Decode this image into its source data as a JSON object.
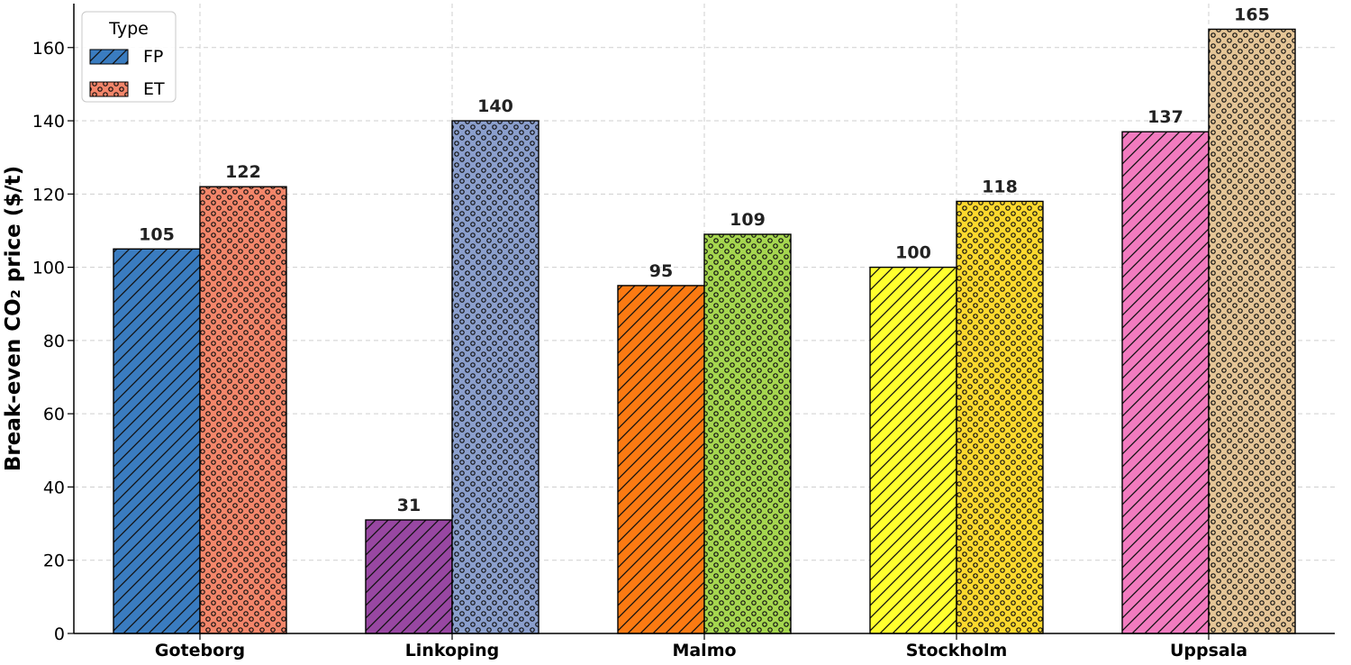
{
  "chart_data": {
    "type": "bar",
    "title": "",
    "xlabel": "",
    "ylabel": "Break-even CO₂ price ($/t)",
    "ylim": [
      0,
      172
    ],
    "yticks": [
      0,
      20,
      40,
      60,
      80,
      100,
      120,
      140,
      160
    ],
    "grid": true,
    "legend": {
      "title": "Type",
      "location": "top-left",
      "entries": [
        {
          "label": "FP",
          "color": "#3a7cc0",
          "pattern": "hatch"
        },
        {
          "label": "ET",
          "color": "#f4866a",
          "pattern": "dots"
        }
      ]
    },
    "categories": [
      "Goteborg",
      "Linkoping",
      "Malmo",
      "Stockholm",
      "Uppsala"
    ],
    "series": [
      {
        "name": "FP",
        "pattern": "hatch",
        "values": [
          105,
          31,
          95,
          100,
          137
        ],
        "colors": [
          "#3a7cc0",
          "#9847a2",
          "#fb7a12",
          "#ffff2e",
          "#f27bbf"
        ]
      },
      {
        "name": "ET",
        "pattern": "dots",
        "values": [
          122,
          140,
          109,
          118,
          165
        ],
        "colors": [
          "#f4866a",
          "#8b9fcd",
          "#a6d74f",
          "#fed92d",
          "#e5c596"
        ]
      }
    ]
  }
}
